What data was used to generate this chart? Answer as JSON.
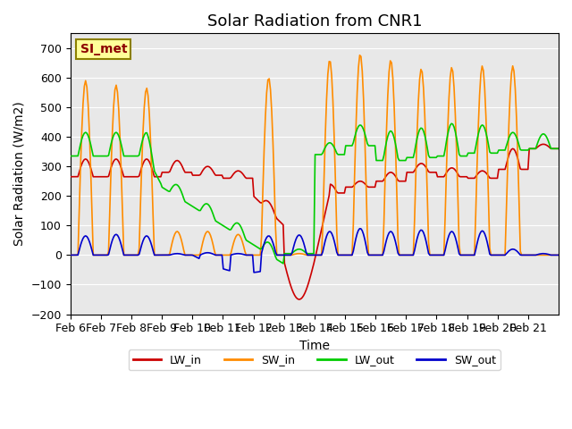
{
  "title": "Solar Radiation from CNR1",
  "xlabel": "Time",
  "ylabel": "Solar Radiation (W/m2)",
  "ylim": [
    -200,
    750
  ],
  "yticks": [
    -200,
    -100,
    0,
    100,
    200,
    300,
    400,
    500,
    600,
    700
  ],
  "date_labels": [
    "Feb 6",
    "Feb 7",
    "Feb 8",
    "Feb 9",
    "Feb 10",
    "Feb 11",
    "Feb 12",
    "Feb 13",
    "Feb 14",
    "Feb 15",
    "Feb 16",
    "Feb 17",
    "Feb 18",
    "Feb 19",
    "Feb 20",
    "Feb 21"
  ],
  "annotation_text": "SI_met",
  "annotation_color": "#8B0000",
  "annotation_bg": "#FFFF99",
  "line_colors": {
    "LW_in": "#CC0000",
    "SW_in": "#FF8C00",
    "LW_out": "#00CC00",
    "SW_out": "#0000CC"
  },
  "background_color": "#E8E8E8",
  "grid_color": "#FFFFFF",
  "title_fontsize": 13,
  "axis_label_fontsize": 10,
  "tick_fontsize": 9
}
